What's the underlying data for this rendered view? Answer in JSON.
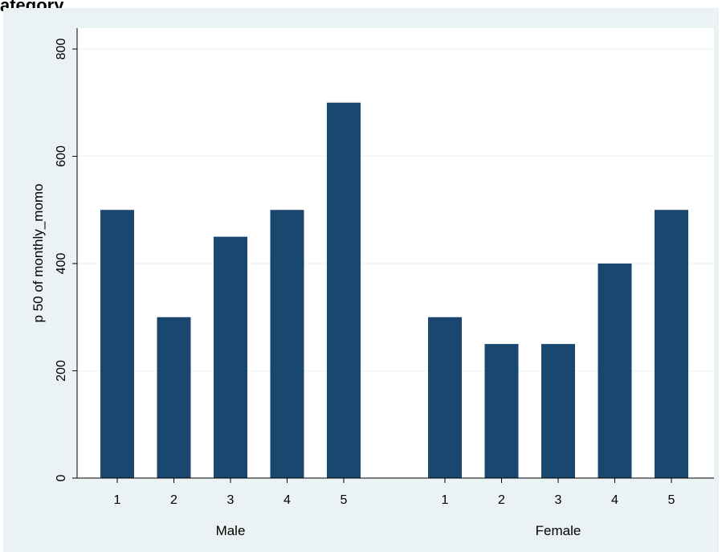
{
  "header": {
    "cropped_title": "ategory"
  },
  "colors": {
    "outer_background": "#eaf2f3",
    "plot_background": "#ffffff",
    "bar": "#1a476f",
    "grid": "#eaf2f3",
    "axis": "#000000"
  },
  "chart_data": {
    "type": "bar",
    "title": "",
    "ylabel": "p 50 of monthly_momo",
    "xlabel": "",
    "ylim": [
      0,
      800
    ],
    "yticks": [
      0,
      200,
      400,
      600,
      800
    ],
    "grid": true,
    "groups": [
      {
        "name": "Male",
        "categories": [
          "1",
          "2",
          "3",
          "4",
          "5"
        ],
        "values": [
          500,
          300,
          450,
          500,
          700
        ]
      },
      {
        "name": "Female",
        "categories": [
          "1",
          "2",
          "3",
          "4",
          "5"
        ],
        "values": [
          300,
          250,
          250,
          400,
          500
        ]
      }
    ]
  }
}
